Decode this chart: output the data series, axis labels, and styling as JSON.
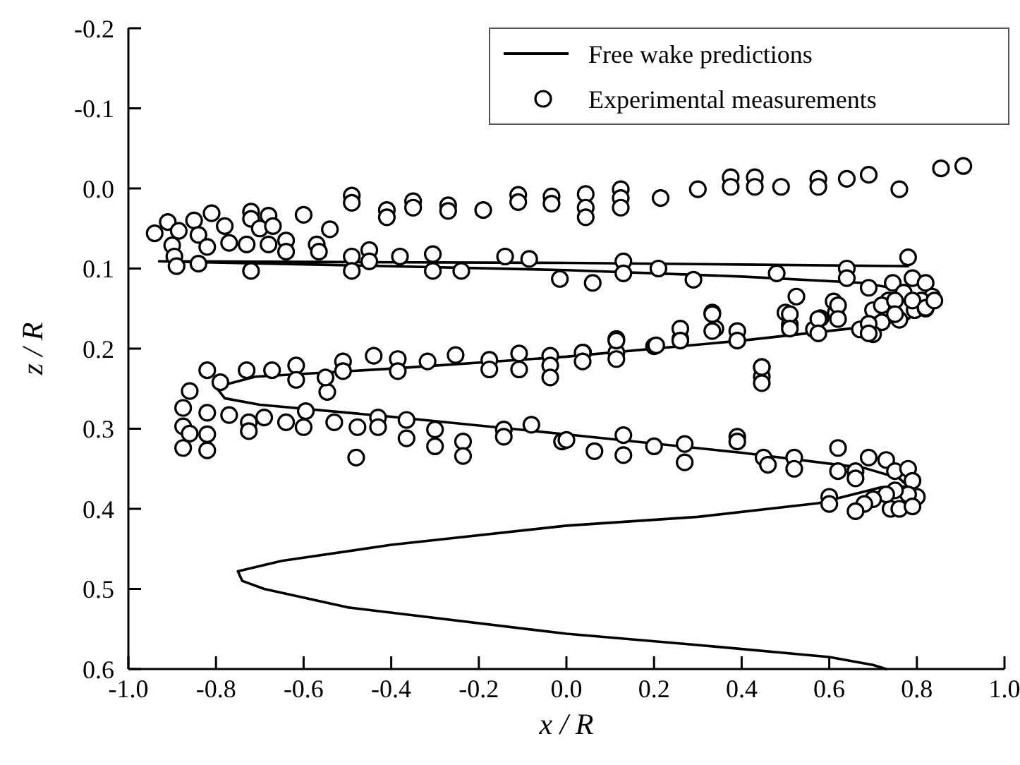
{
  "chart_data": {
    "type": "scatter",
    "xlabel": "x / R",
    "ylabel": "z / R",
    "xlim": [
      -1,
      1
    ],
    "xticks": [
      {
        "value": -1,
        "label": "-1.0"
      },
      -0.8,
      -0.6,
      -0.4,
      -0.2,
      {
        "value": 0,
        "label": "0.0"
      },
      0.2,
      0.4,
      0.6,
      0.8,
      {
        "value": 1,
        "label": "1.0"
      }
    ],
    "ylim": [
      0.6,
      -0.2
    ],
    "yticks": [
      -0.2,
      -0.1,
      {
        "value": 0,
        "label": "0.0"
      },
      0.1,
      0.2,
      0.3,
      0.4,
      0.5,
      0.6
    ],
    "legend": "top right",
    "grid": false,
    "series": [
      {
        "name": "Free wake predictions",
        "type": "line",
        "marker": "none",
        "line_style": "solid",
        "color": "#000000",
        "x": [
          0.78,
          0.4,
          0,
          -0.5,
          -0.93,
          -0.5,
          0,
          0.4,
          0.68,
          0.78,
          0.82,
          0.78,
          0.68,
          0.4,
          0,
          -0.4,
          -0.71,
          -0.8,
          -0.78,
          -0.7,
          -0.4,
          0,
          0.4,
          0.68,
          0.76,
          0.78,
          0.72,
          0.575,
          0.3,
          0,
          -0.4,
          -0.65,
          -0.75,
          -0.74,
          -0.69,
          -0.5,
          0,
          0.3,
          0.6,
          0.7,
          0.73
        ],
        "values": [
          0.097,
          0.095,
          0.093,
          0.092,
          0.091,
          0.096,
          0.102,
          0.11,
          0.118,
          0.128,
          0.145,
          0.163,
          0.173,
          0.19,
          0.21,
          0.225,
          0.235,
          0.248,
          0.262,
          0.27,
          0.285,
          0.307,
          0.33,
          0.349,
          0.362,
          0.372,
          0.373,
          0.393,
          0.41,
          0.421,
          0.445,
          0.465,
          0.478,
          0.49,
          0.5,
          0.523,
          0.556,
          0.57,
          0.585,
          0.595,
          0.6
        ]
      },
      {
        "name": "Experimental measurements",
        "marker": "circle",
        "color": "#000000",
        "x": [
          -0.49,
          -0.49,
          -0.41,
          -0.41,
          -0.35,
          -0.35,
          -0.27,
          -0.27,
          -0.19,
          -0.11,
          -0.11,
          -0.034,
          -0.034,
          0.044,
          0.044,
          0.044,
          0.124,
          0.124,
          0.124,
          0.215,
          0.3,
          0.375,
          0.375,
          0.43,
          0.43,
          0.49,
          0.575,
          0.575,
          0.64,
          0.69,
          0.76,
          0.855,
          0.906,
          -0.94,
          -0.91,
          -0.885,
          -0.9,
          -0.895,
          -0.89,
          -0.85,
          -0.84,
          -0.82,
          -0.81,
          -0.78,
          -0.77,
          -0.84,
          -0.72,
          -0.72,
          -0.7,
          -0.73,
          -0.68,
          -0.67,
          -0.68,
          -0.72,
          -0.64,
          -0.64,
          -0.6,
          -0.57,
          -0.565,
          -0.54,
          -0.49,
          -0.49,
          -0.45,
          -0.45,
          -0.38,
          -0.305,
          -0.305,
          -0.24,
          -0.14,
          -0.085,
          -0.015,
          0.06,
          0.13,
          0.13,
          0.21,
          0.29,
          0.48,
          0.525,
          0.64,
          0.64,
          0.78,
          0.69,
          0.745,
          0.79,
          0.82,
          0.835,
          0.81,
          0.77,
          0.735,
          0.795,
          0.82,
          0.7,
          0.72,
          0.76,
          0.67,
          0.7,
          0.333,
          0.34,
          0.5,
          0.51,
          0.565,
          0.58,
          0.61,
          0.615,
          0.26,
          0.2,
          0.114,
          0.114,
          0.038,
          0.446,
          0.446,
          -0.037,
          -0.037,
          -0.037,
          -0.108,
          -0.108,
          -0.176,
          -0.176,
          -0.253,
          -0.317,
          -0.385,
          -0.385,
          -0.44,
          -0.51,
          -0.51,
          -0.546,
          -0.55,
          -0.617,
          -0.617,
          -0.672,
          -0.73,
          -0.82,
          -0.79,
          -0.86,
          -0.875,
          -0.82,
          -0.875,
          -0.86,
          -0.875,
          -0.82,
          -0.82,
          -0.77,
          -0.725,
          -0.725,
          -0.69,
          -0.64,
          -0.595,
          -0.6,
          -0.53,
          -0.477,
          -0.48,
          -0.43,
          -0.43,
          -0.365,
          -0.365,
          -0.3,
          -0.3,
          -0.236,
          -0.236,
          -0.143,
          -0.143,
          -0.08,
          -0.01,
          0.037,
          0.037,
          0.114,
          0.114,
          0.205,
          0.26,
          0.26,
          0.333,
          0.333,
          0.39,
          0.39,
          0.446,
          0.446,
          0.51,
          0.51,
          0.575,
          0.575,
          0.62,
          0.62,
          0.69,
          0.69,
          0.72,
          0.75,
          0.75,
          0.79,
          0.82,
          0.84,
          0,
          0.064,
          0.13,
          0.13,
          0.2,
          0.27,
          0.27,
          0.39,
          0.39,
          0.45,
          0.46,
          0.52,
          0.52,
          0.62,
          0.62,
          0.66,
          0.66,
          0.69,
          0.73,
          0.75,
          0.78,
          0.79,
          0.8,
          0.78,
          0.75,
          0.74,
          0.76,
          0.79,
          0.73,
          0.7,
          0.68,
          0.66,
          0.6,
          0.6
        ],
        "values": [
          0.009,
          0.018,
          0.027,
          0.036,
          0.016,
          0.024,
          0.021,
          0.028,
          0.027,
          0.008,
          0.017,
          0.01,
          0.019,
          0.007,
          0.024,
          0.036,
          0.001,
          0.012,
          0.024,
          0.012,
          0.001,
          -0.014,
          -0.002,
          -0.014,
          -0.002,
          -0.002,
          -0.012,
          -0.002,
          -0.012,
          -0.017,
          0.001,
          -0.025,
          -0.028,
          0.056,
          0.042,
          0.053,
          0.071,
          0.085,
          0.097,
          0.04,
          0.058,
          0.073,
          0.031,
          0.047,
          0.068,
          0.094,
          0.029,
          0.038,
          0.05,
          0.07,
          0.034,
          0.047,
          0.07,
          0.103,
          0.065,
          0.079,
          0.033,
          0.07,
          0.079,
          0.051,
          0.085,
          0.103,
          0.077,
          0.091,
          0.085,
          0.082,
          0.103,
          0.103,
          0.085,
          0.088,
          0.113,
          0.118,
          0.091,
          0.106,
          0.1,
          0.114,
          0.106,
          0.135,
          0.1,
          0.112,
          0.086,
          0.124,
          0.118,
          0.112,
          0.118,
          0.135,
          0.14,
          0.13,
          0.14,
          0.152,
          0.15,
          0.152,
          0.167,
          0.164,
          0.176,
          0.182,
          0.155,
          0.175,
          0.155,
          0.17,
          0.176,
          0.162,
          0.141,
          0.155,
          0.188,
          0.197,
          0.188,
          0.205,
          0.205,
          0.223,
          0.235,
          0.209,
          0.221,
          0.236,
          0.206,
          0.226,
          0.214,
          0.226,
          0.208,
          0.216,
          0.213,
          0.228,
          0.209,
          0.216,
          0.228,
          0.254,
          0.236,
          0.221,
          0.239,
          0.227,
          0.227,
          0.227,
          0.242,
          0.253,
          0.274,
          0.28,
          0.297,
          0.306,
          0.324,
          0.307,
          0.327,
          0.283,
          0.292,
          0.303,
          0.286,
          0.292,
          0.278,
          0.298,
          0.292,
          0.298,
          0.336,
          0.286,
          0.298,
          0.289,
          0.312,
          0.301,
          0.322,
          0.316,
          0.334,
          0.301,
          0.31,
          0.295,
          0.316,
          0.205,
          0.216,
          0.19,
          0.213,
          0.196,
          0.175,
          0.19,
          0.157,
          0.178,
          0.178,
          0.19,
          0.223,
          0.243,
          0.157,
          0.175,
          0.163,
          0.181,
          0.146,
          0.163,
          0.169,
          0.181,
          0.146,
          0.14,
          0.157,
          0.14,
          0.149,
          0.14,
          0.314,
          0.328,
          0.308,
          0.333,
          0.322,
          0.319,
          0.342,
          0.31,
          0.316,
          0.336,
          0.345,
          0.336,
          0.35,
          0.324,
          0.353,
          0.353,
          0.362,
          0.336,
          0.339,
          0.353,
          0.35,
          0.365,
          0.385,
          0.382,
          0.377,
          0.4,
          0.4,
          0.397,
          0.382,
          0.388,
          0.394,
          0.403,
          0.385,
          0.394
        ]
      }
    ]
  }
}
